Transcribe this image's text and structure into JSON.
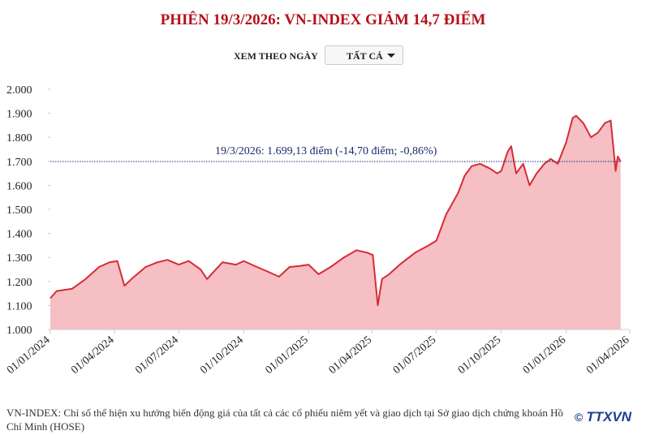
{
  "chart_data": {
    "type": "area",
    "title": "PHIÊN 19/3/2026: VN-INDEX GIẢM 14,7 ĐIỂM",
    "filter_label": "XEM THEO NGÀY",
    "filter_value": "TẤT CẢ",
    "x": [
      "01/01/2024",
      "10/01/2024",
      "01/02/2024",
      "20/02/2024",
      "10/03/2024",
      "25/03/2024",
      "05/04/2024",
      "15/04/2024",
      "25/04/2024",
      "15/05/2024",
      "01/06/2024",
      "15/06/2024",
      "01/07/2024",
      "15/07/2024",
      "01/08/2024",
      "10/08/2024",
      "01/09/2024",
      "20/09/2024",
      "01/10/2024",
      "20/10/2024",
      "05/11/2024",
      "20/11/2024",
      "05/12/2024",
      "20/12/2024",
      "01/01/2025",
      "15/01/2025",
      "01/02/2025",
      "20/02/2025",
      "10/03/2025",
      "25/03/2025",
      "02/04/2025",
      "09/04/2025",
      "15/04/2025",
      "25/04/2025",
      "10/05/2025",
      "01/06/2025",
      "20/06/2025",
      "01/07/2025",
      "15/07/2025",
      "01/08/2025",
      "10/08/2025",
      "20/08/2025",
      "01/09/2025",
      "15/09/2025",
      "25/09/2025",
      "01/10/2025",
      "10/10/2025",
      "15/10/2025",
      "22/10/2025",
      "01/11/2025",
      "10/11/2025",
      "20/11/2025",
      "01/12/2025",
      "10/12/2025",
      "20/12/2025",
      "01/01/2026",
      "10/01/2026",
      "15/01/2026",
      "25/01/2026",
      "05/02/2026",
      "15/02/2026",
      "25/02/2026",
      "05/03/2026",
      "10/03/2026",
      "12/03/2026",
      "15/03/2026",
      "19/03/2026"
    ],
    "series": [
      {
        "name": "VN-INDEX",
        "color": "#d62c36",
        "fill": "#f5bfc3",
        "values": [
          1130,
          1160,
          1170,
          1210,
          1260,
          1280,
          1285,
          1182,
          1210,
          1260,
          1280,
          1290,
          1270,
          1285,
          1250,
          1210,
          1280,
          1270,
          1285,
          1260,
          1240,
          1220,
          1260,
          1265,
          1270,
          1230,
          1260,
          1300,
          1330,
          1320,
          1310,
          1101,
          1210,
          1230,
          1270,
          1320,
          1350,
          1370,
          1480,
          1570,
          1640,
          1680,
          1690,
          1670,
          1650,
          1660,
          1740,
          1763,
          1650,
          1690,
          1600,
          1650,
          1690,
          1710,
          1690,
          1780,
          1880,
          1890,
          1860,
          1800,
          1820,
          1860,
          1870,
          1720,
          1660,
          1720,
          1699.13
        ]
      }
    ],
    "xlim": [
      "01/01/2024",
      "01/04/2026"
    ],
    "xticks": [
      "01/01/2024",
      "01/04/2024",
      "01/07/2024",
      "01/10/2024",
      "01/01/2025",
      "01/04/2025",
      "01/07/2025",
      "01/10/2025",
      "01/01/2026",
      "01/04/2026"
    ],
    "ylim": [
      1000,
      2000
    ],
    "yticks": [
      {
        "value": 1000,
        "label": "1.000"
      },
      {
        "value": 1100,
        "label": "1.100"
      },
      {
        "value": 1200,
        "label": "1.200"
      },
      {
        "value": 1300,
        "label": "1.300"
      },
      {
        "value": 1400,
        "label": "1.400"
      },
      {
        "value": 1500,
        "label": "1.500"
      },
      {
        "value": 1600,
        "label": "1.600"
      },
      {
        "value": 1700,
        "label": "1.700"
      },
      {
        "value": 1800,
        "label": "1.800"
      },
      {
        "value": 1900,
        "label": "1.900"
      },
      {
        "value": 2000,
        "label": "2.000"
      }
    ],
    "reference_line": {
      "value": 1699.13,
      "color": "#1a2a6c",
      "label": "19/3/2026: 1.699,13 điểm (-14,70 điểm; -0,86%)"
    },
    "footnote": "VN-INDEX: Chỉ số thể hiện xu hướng biến động giá của tất cả các cổ phiếu niêm yết và giao dịch tại Sở giao dịch chứng khoán Hồ Chí Minh (HOSE)",
    "copyright": "©",
    "source": "TTXVN"
  }
}
